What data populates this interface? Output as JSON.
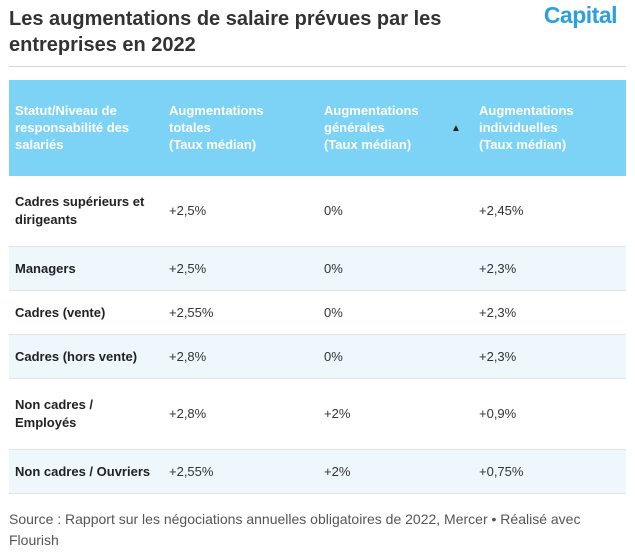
{
  "title": "Les augmentations de salaire prévues par les entreprises en 2022",
  "logo_text": "Capital",
  "colors": {
    "header_bg": "#7dd3f5",
    "row_alt_bg": "#edf7fc",
    "logo": "#2d9ee0"
  },
  "chart_data": {
    "type": "table",
    "columns": [
      "Statut/Niveau de responsabilité des salariés",
      "Augmentations totales (Taux médian)",
      "Augmentations générales (Taux médian)",
      "Augmentations individuelles (Taux médian)"
    ],
    "header_lines": [
      [
        "Statut/Niveau de",
        "responsabilité des",
        "salariés"
      ],
      [
        "Augmentations",
        "totales",
        "(Taux médian)"
      ],
      [
        "Augmentations",
        "générales",
        "(Taux médian)"
      ],
      [
        "Augmentations",
        "individuelles",
        "(Taux médian)"
      ]
    ],
    "sort_indicator": "▲",
    "rows": [
      [
        "Cadres supérieurs et dirigeants",
        "+2,5%",
        "0%",
        "+2,45%"
      ],
      [
        "Managers",
        "+2,5%",
        "0%",
        "+2,3%"
      ],
      [
        "Cadres (vente)",
        "+2,55%",
        "0%",
        "+2,3%"
      ],
      [
        "Cadres (hors vente)",
        "+2,8%",
        "0%",
        "+2,3%"
      ],
      [
        "Non cadres / Employés",
        "+2,8%",
        "+2%",
        "+0,9%"
      ],
      [
        "Non cadres / Ouvriers",
        "+2,55%",
        "+2%",
        "+0,75%"
      ]
    ]
  },
  "source": "Source : Rapport sur les négociations annuelles obligatoires de 2022, Mercer • Réalisé avec Flourish"
}
